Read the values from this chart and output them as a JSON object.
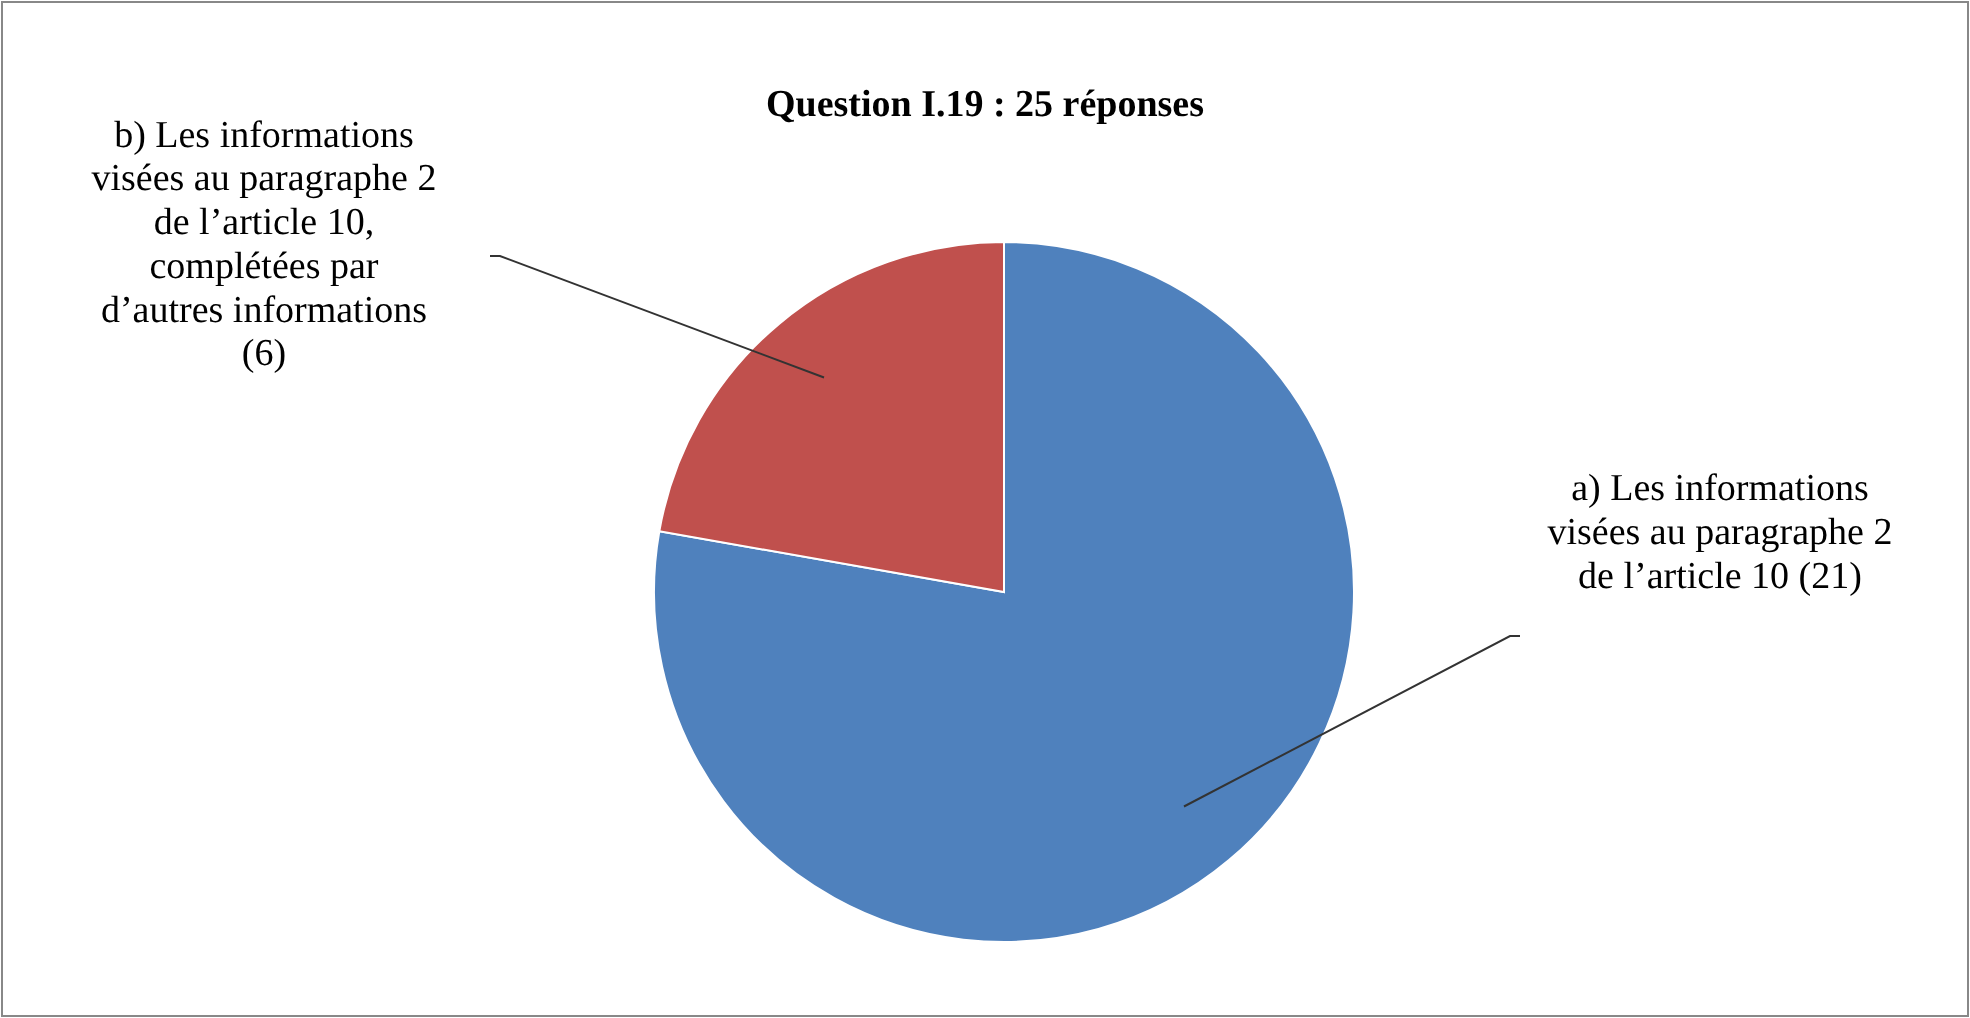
{
  "chart_data": {
    "type": "pie",
    "title": "Question I.19 : 25 réponses",
    "categories": [
      "a) Les informations visées au paragraphe 2 de l’article 10",
      "b) Les informations visées au paragraphe 2 de l’article 10, complétées par d’autres informations"
    ],
    "values": [
      21,
      6
    ],
    "value_labels": [
      "(21)",
      "(6)"
    ],
    "colors": [
      "#4f81bd",
      "#c0504d"
    ]
  }
}
